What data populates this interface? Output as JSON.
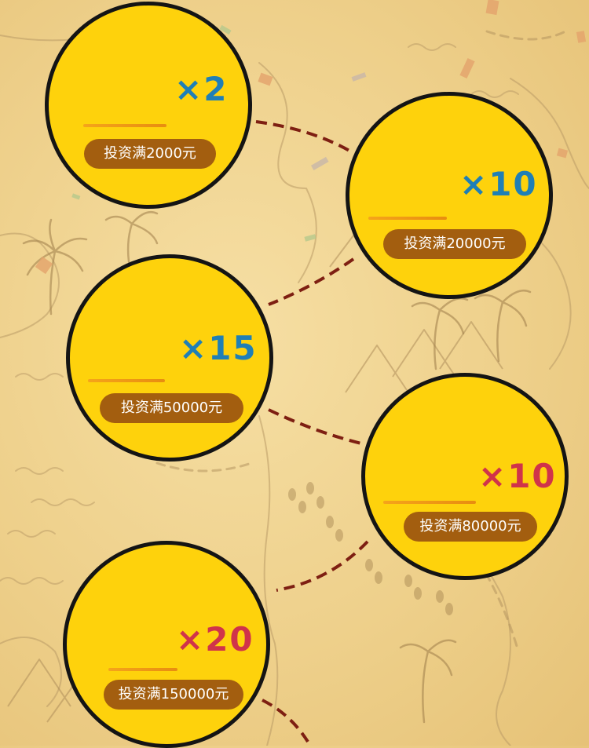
{
  "rewards": [
    {
      "multiplier": "×2",
      "condition": "投资满2000元",
      "color": "#1f7fb6"
    },
    {
      "multiplier": "×10",
      "condition": "投资满20000元",
      "color": "#1f7fb6"
    },
    {
      "multiplier": "×15",
      "condition": "投资满50000元",
      "color": "#1f7fb6"
    },
    {
      "multiplier": "×10",
      "condition": "投资满80000元",
      "color": "#d0334a"
    },
    {
      "multiplier": "×20",
      "condition": "投资满150000元",
      "color": "#d0334a"
    }
  ]
}
